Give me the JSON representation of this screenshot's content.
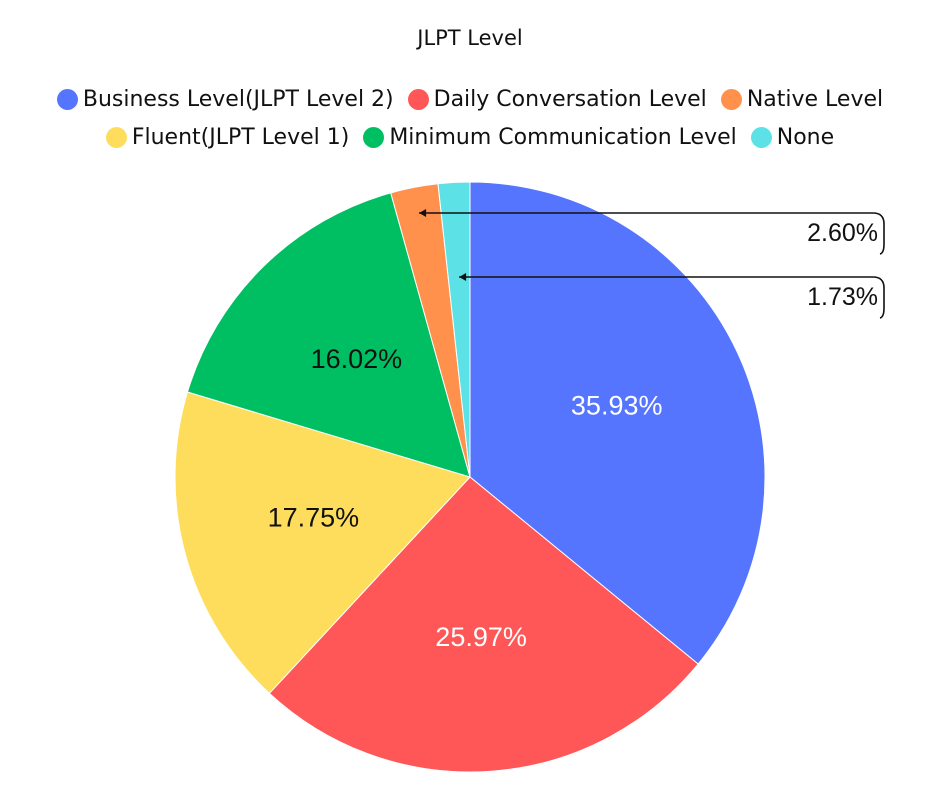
{
  "chart_data": {
    "type": "pie",
    "title": "JLPT Level",
    "legend_position": "top",
    "slices": [
      {
        "name": "Business Level(JLPT Level 2)",
        "value": 35.93,
        "label": "35.93%",
        "color": "#5575FF",
        "label_color": "#ffffff"
      },
      {
        "name": "Daily Conversation Level",
        "value": 25.97,
        "label": "25.97%",
        "color": "#FF5757",
        "label_color": "#ffffff"
      },
      {
        "name": "Fluent(JLPT Level 1)",
        "value": 17.75,
        "label": "17.75%",
        "color": "#FFDD5C",
        "label_color": "#111111"
      },
      {
        "name": "Minimum Communication Level",
        "value": 16.02,
        "label": "16.02%",
        "color": "#00BF63",
        "label_color": "#111111"
      },
      {
        "name": "Native Level",
        "value": 2.6,
        "label": "2.60%",
        "color": "#FF914D",
        "label_color": "#111111"
      },
      {
        "name": "None",
        "value": 1.73,
        "label": "1.73%",
        "color": "#5CE1E6",
        "label_color": "#111111"
      }
    ],
    "legend_rows": [
      [
        "Business Level(JLPT Level 2)",
        "Daily Conversation Level",
        "Native Level"
      ],
      [
        "Fluent(JLPT Level 1)",
        "Minimum Communication Level",
        "None"
      ]
    ]
  }
}
